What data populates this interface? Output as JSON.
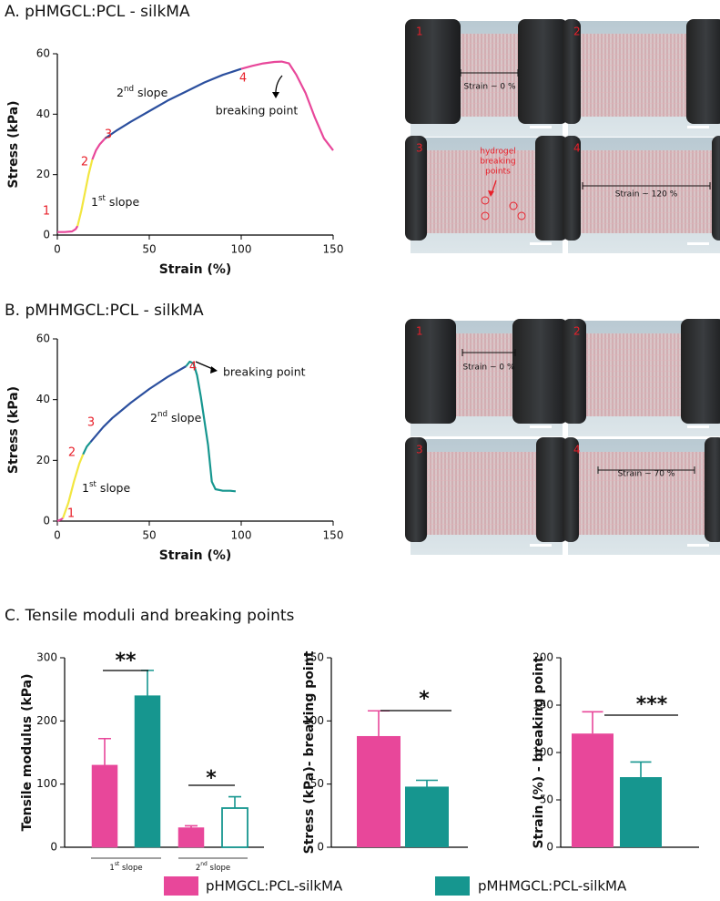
{
  "panels": {
    "a": "A. pHMGCL:PCL - silkMA",
    "b": "B. pMHMGCL:PCL - silkMA",
    "c": "C. Tensile moduli and breaking points"
  },
  "chart_data": [
    {
      "type": "line",
      "xlabel": "Strain (%)",
      "ylabel": "Stress (kPa)",
      "xlim": [
        0,
        150
      ],
      "ylim": [
        0,
        60
      ],
      "xticks": [
        0,
        50,
        100,
        150
      ],
      "yticks": [
        0,
        20,
        40,
        60
      ],
      "series": [
        {
          "color": "#e8479a",
          "x": [
            0,
            4,
            8,
            10,
            11
          ],
          "values": [
            1,
            1,
            1.2,
            2,
            3
          ]
        },
        {
          "color": "#f2e640",
          "x": [
            11,
            13,
            15,
            17,
            19
          ],
          "values": [
            3,
            8,
            14,
            20,
            25
          ]
        },
        {
          "color": "#e8479a",
          "x": [
            19,
            21,
            23,
            26
          ],
          "values": [
            25,
            28,
            30,
            32
          ]
        },
        {
          "color": "#2b4f9e",
          "x": [
            26,
            32,
            40,
            50,
            60,
            70,
            80,
            90,
            100
          ],
          "values": [
            32,
            34.5,
            37.5,
            41,
            44.5,
            47.5,
            50.5,
            53,
            55
          ]
        },
        {
          "color": "#e8479a",
          "x": [
            100,
            106,
            112,
            118,
            122,
            126,
            130,
            135,
            140,
            145,
            150
          ],
          "values": [
            55,
            56,
            56.8,
            57.3,
            57.4,
            56.8,
            53,
            47,
            39,
            32,
            28
          ]
        }
      ],
      "point_labels": [
        "1",
        "2",
        "3",
        "4"
      ],
      "label_color": "#e8202a",
      "slope_labels": [
        [
          "1",
          "st",
          " slope"
        ],
        [
          "2",
          "nd",
          " slope"
        ]
      ],
      "breaking_label": "breaking point"
    },
    {
      "type": "line",
      "xlabel": "Strain (%)",
      "ylabel": "Stress (kPa)",
      "xlim": [
        0,
        150
      ],
      "ylim": [
        0,
        60
      ],
      "xticks": [
        0,
        50,
        100,
        150
      ],
      "yticks": [
        0,
        20,
        40,
        60
      ],
      "series": [
        {
          "color": "#e8479a",
          "x": [
            0,
            2,
            3
          ],
          "values": [
            0,
            0.5,
            1
          ]
        },
        {
          "color": "#f2e640",
          "x": [
            3,
            6,
            9,
            12,
            14
          ],
          "values": [
            1,
            6,
            13,
            19,
            22
          ]
        },
        {
          "color": "#16968f",
          "x": [
            14,
            16,
            18
          ],
          "values": [
            22,
            24.5,
            26
          ]
        },
        {
          "color": "#2b4f9e",
          "x": [
            18,
            25,
            30,
            40,
            50,
            60,
            70
          ],
          "values": [
            26,
            31,
            34,
            39,
            43.5,
            47.5,
            51
          ]
        },
        {
          "color": "#16968f",
          "x": [
            70,
            72,
            74,
            76,
            78,
            80,
            82,
            84,
            86,
            90,
            94,
            97
          ],
          "values": [
            51,
            52.5,
            52,
            48,
            41,
            33,
            25,
            13,
            10.5,
            10,
            10,
            9.8
          ]
        }
      ],
      "point_labels": [
        "1",
        "2",
        "3",
        "4"
      ],
      "label_color": "#e8202a",
      "slope_labels": [
        [
          "1",
          "st",
          " slope"
        ],
        [
          "2",
          "nd",
          " slope"
        ]
      ],
      "breaking_label": "breaking point"
    },
    {
      "type": "grouped_bar",
      "ylabel": "Tensile modulus (kPa)",
      "ylim": [
        0,
        300
      ],
      "yticks": [
        0,
        100,
        200,
        300
      ],
      "categories": [
        [
          "1",
          "st",
          " slope"
        ],
        [
          "2",
          "nd",
          " slope"
        ]
      ],
      "series": [
        {
          "name": "pHMGCL:PCL-silkMA",
          "color": "#e8479a",
          "values": [
            130,
            31
          ],
          "errors": [
            42,
            3
          ]
        },
        {
          "name": "pMHMGCL:PCL-silkMA",
          "color": "#16968f",
          "values": [
            240,
            62
          ],
          "errors": [
            40,
            18
          ],
          "outline_only": [
            false,
            true
          ]
        }
      ],
      "significance": [
        "**",
        "*"
      ]
    },
    {
      "type": "bar",
      "ylabel": "Stress (kPa)- breaking point",
      "ylim": [
        0,
        150
      ],
      "yticks": [
        0,
        50,
        100,
        150
      ],
      "categories": [
        null,
        null
      ],
      "values": [
        88,
        48
      ],
      "errors": [
        20,
        5
      ],
      "colors": [
        "#e8479a",
        "#16968f"
      ],
      "significance": "*"
    },
    {
      "type": "bar",
      "ylabel": "Strain (%) - breaking point",
      "ylim": [
        0,
        200
      ],
      "yticks": [
        0,
        50,
        100,
        150,
        200
      ],
      "categories": [
        null,
        null
      ],
      "values": [
        120,
        74
      ],
      "errors": [
        23,
        16
      ],
      "colors": [
        "#e8479a",
        "#16968f"
      ],
      "significance": "***"
    }
  ],
  "photos": {
    "a": {
      "labels": [
        "1",
        "2",
        "3",
        "4"
      ],
      "strain_first": "Strain ~ 0 %",
      "breaking_note": [
        "hydrogel",
        "breaking",
        "points"
      ],
      "strain_last": "Strain ~ 120 %"
    },
    "b": {
      "labels": [
        "1",
        "2",
        "3",
        "4"
      ],
      "strain_first": "Strain ~ 0 %",
      "strain_last": "Strain ~ 70 %"
    }
  }
}
